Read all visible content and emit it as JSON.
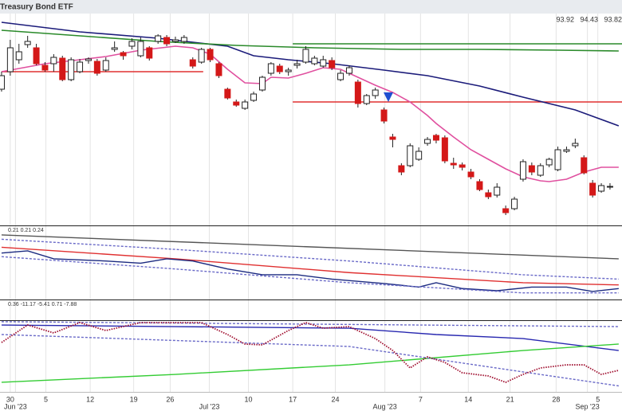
{
  "chart_data": [
    {
      "type": "candlestick",
      "title": "Treasury Bond ETF",
      "header_values": [
        93.92,
        94.43,
        93.82
      ],
      "xlim": [
        -0.18,
        71.38
      ],
      "ylim": [
        92.68,
        104
      ],
      "up_color": "#ffffff",
      "down_color": "#d41818",
      "ohlc": [
        [
          99.52,
          100.4,
          99.4,
          100.2
        ],
        [
          100.4,
          102,
          100.2,
          101.6
        ],
        [
          101,
          101.8,
          100.8,
          101.4
        ],
        [
          101.76,
          102.2,
          101.6,
          101.92
        ],
        [
          101.6,
          101.8,
          100.72,
          100.8
        ],
        [
          100.72,
          100.88,
          100.4,
          100.48
        ],
        [
          100.8,
          101.28,
          100.4,
          101.12
        ],
        [
          101.08,
          101.2,
          99.92,
          100
        ],
        [
          100,
          101.12,
          99.92,
          101
        ],
        [
          100.4,
          101.04,
          100.32,
          100.88
        ],
        [
          100.96,
          101.12,
          100.8,
          101.04
        ],
        [
          100.92,
          101.04,
          100.2,
          100.32
        ],
        [
          100.48,
          101.12,
          100.4,
          100.96
        ],
        [
          101.52,
          101.92,
          101.4,
          101.6
        ],
        [
          101.36,
          101.44,
          101,
          101.2
        ],
        [
          101.68,
          102.08,
          101.52,
          101.92
        ],
        [
          101.2,
          102.12,
          101.12,
          101.92
        ],
        [
          101.6,
          101.68,
          100.96,
          101.08
        ],
        [
          101.92,
          102.28,
          101.8,
          102.2
        ],
        [
          102.12,
          102.24,
          101.68,
          101.8
        ],
        [
          101.92,
          102.16,
          101.84,
          102
        ],
        [
          101.92,
          102.24,
          101.8,
          102.12
        ],
        [
          101,
          101.12,
          100.56,
          100.68
        ],
        [
          100.88,
          101.6,
          100.8,
          101.52
        ],
        [
          101.52,
          101.6,
          100.88,
          101
        ],
        [
          100.8,
          100.88,
          100.08,
          100.2
        ],
        [
          99.52,
          99.6,
          99,
          99.08
        ],
        [
          98.88,
          99,
          98.64,
          98.72
        ],
        [
          98.56,
          99,
          98.48,
          98.88
        ],
        [
          98.96,
          99.4,
          98.88,
          99.28
        ],
        [
          99.48,
          100.2,
          99.4,
          100.12
        ],
        [
          100.32,
          100.88,
          100.2,
          100.8
        ],
        [
          100.68,
          100.8,
          100.28,
          100.4
        ],
        [
          100.4,
          100.6,
          100.2,
          100.48
        ],
        [
          100.72,
          101,
          100.56,
          100.8
        ],
        [
          100.88,
          101.68,
          100.8,
          101.52
        ],
        [
          100.8,
          101.2,
          100.72,
          101.08
        ],
        [
          100.68,
          101.2,
          100.6,
          101
        ],
        [
          100.96,
          101.12,
          100.48,
          100.6
        ],
        [
          100,
          100.48,
          99.92,
          100.32
        ],
        [
          100.32,
          100.72,
          100.2,
          100.6
        ],
        [
          99.88,
          100,
          98.6,
          98.8
        ],
        [
          98.8,
          99.28,
          98.72,
          99.2
        ],
        [
          99.2,
          99.6,
          99.04,
          99.48
        ],
        [
          98.48,
          98.6,
          97.8,
          97.92
        ],
        [
          97.12,
          97.28,
          96.6,
          97
        ],
        [
          95.68,
          95.8,
          95.2,
          95.36
        ],
        [
          95.68,
          96.8,
          95.6,
          96.68
        ],
        [
          96,
          96.6,
          95.92,
          96.4
        ],
        [
          96.8,
          97.12,
          96.68,
          97
        ],
        [
          97.2,
          97.28,
          96.8,
          96.96
        ],
        [
          97.08,
          97.2,
          95.8,
          95.92
        ],
        [
          95.8,
          96.08,
          95.52,
          95.72
        ],
        [
          95.72,
          95.84,
          95.44,
          95.6
        ],
        [
          95.36,
          95.52,
          95,
          95.12
        ],
        [
          94.88,
          95,
          94.4,
          94.48
        ],
        [
          94.32,
          94.48,
          94,
          94.12
        ],
        [
          94.2,
          94.8,
          94.08,
          94.6
        ],
        [
          93.52,
          93.68,
          93.2,
          93.32
        ],
        [
          93.52,
          94.12,
          93.44,
          94
        ],
        [
          95,
          96,
          94.88,
          95.88
        ],
        [
          95.68,
          95.84,
          95.2,
          95.36
        ],
        [
          95.2,
          95.8,
          95.12,
          95.68
        ],
        [
          95.72,
          96.08,
          95.6,
          96
        ],
        [
          95.48,
          96.64,
          95.4,
          96.48
        ],
        [
          96.4,
          96.64,
          96.32,
          96.48
        ],
        [
          96.68,
          97.04,
          96.56,
          96.8
        ],
        [
          96.08,
          96.2,
          95.24,
          95.32
        ],
        [
          94.8,
          94.96,
          94.08,
          94.2
        ],
        [
          94.4,
          94.8,
          94.32,
          94.68
        ],
        [
          94.6,
          94.8,
          94.48,
          94.64
        ]
      ],
      "overlays": [
        {
          "color": "#e0509f",
          "x": [
            0,
            3,
            5,
            9,
            12,
            16,
            20,
            22,
            24,
            26,
            28,
            30,
            31,
            33,
            35,
            37,
            39,
            41,
            43,
            45,
            47,
            49,
            50,
            52,
            54,
            56,
            58,
            60,
            62,
            63,
            65,
            67,
            69,
            71
          ],
          "values": [
            100.4,
            100.64,
            100.8,
            101,
            101.16,
            101.48,
            101.68,
            101.6,
            101.28,
            100.52,
            99.84,
            99.8,
            100.12,
            100.08,
            100.32,
            100.6,
            100.52,
            100.12,
            99.72,
            99.36,
            98.88,
            98.2,
            97.8,
            97.12,
            96.48,
            96,
            95.52,
            95.12,
            94.92,
            94.88,
            95,
            95.36,
            95.6,
            95.6
          ]
        },
        {
          "color": "#1b1b7a",
          "x": [
            0,
            9,
            18,
            26,
            29,
            33,
            38,
            44,
            49,
            55,
            60,
            66,
            71
          ],
          "values": [
            102.88,
            102.4,
            102.08,
            101.68,
            101.2,
            101,
            100.8,
            100.48,
            100.2,
            99.68,
            99.12,
            98.48,
            97.68
          ]
        },
        {
          "color": "#2a8a2a",
          "x": [
            0,
            9,
            18,
            27,
            36,
            46,
            55,
            64,
            71
          ],
          "values": [
            102.48,
            102.2,
            101.92,
            101.72,
            101.6,
            101.52,
            101.52,
            101.48,
            101.44
          ]
        }
      ],
      "levels": [
        {
          "value": 100.4,
          "from": 0,
          "to": 23.2,
          "color": "#e03030"
        },
        {
          "value": 98.88,
          "from": 33.5,
          "to": 71.38,
          "color": "#e03030"
        },
        {
          "value": 101.8,
          "from": 33.5,
          "to": 71.38,
          "color": "#2a8a2a"
        }
      ]
    },
    {
      "type": "line",
      "label": "0.21 0.21 0.24",
      "xlim": [
        -0.18,
        71.38
      ],
      "ylim": [
        0,
        1
      ],
      "series": [
        {
          "color": "#555555",
          "x": [
            0,
            71
          ],
          "values": [
            0.88,
            0.55
          ]
        },
        {
          "color": "#e03030",
          "x": [
            0,
            20,
            40,
            60,
            71
          ],
          "values": [
            0.71,
            0.55,
            0.36,
            0.22,
            0.19
          ]
        },
        {
          "color": "#1b2a80",
          "x": [
            0,
            3,
            6,
            12,
            16,
            19,
            22,
            26,
            30,
            34,
            38,
            44,
            48,
            50,
            53,
            57,
            61,
            65,
            68,
            71
          ],
          "values": [
            0.63,
            0.66,
            0.55,
            0.52,
            0.49,
            0.55,
            0.52,
            0.41,
            0.33,
            0.33,
            0.27,
            0.21,
            0.16,
            0.22,
            0.14,
            0.11,
            0.16,
            0.16,
            0.1,
            0.14
          ]
        },
        {
          "color": "#6a6ac8",
          "dashed": true,
          "x": [
            0,
            20,
            40,
            60,
            71
          ],
          "values": [
            0.82,
            0.68,
            0.52,
            0.33,
            0.27
          ]
        },
        {
          "color": "#6a6ac8",
          "dashed": true,
          "x": [
            0,
            20,
            40,
            60,
            71
          ],
          "values": [
            0.58,
            0.41,
            0.22,
            0.08,
            0.08
          ]
        }
      ]
    },
    {
      "type": "line",
      "label": "0.36 -11.17 -5.41 0.71 -7.88",
      "xlim": [
        -0.18,
        71.38
      ],
      "ylim": [
        19.05,
        90.48
      ],
      "series": [
        {
          "color": "#2828b0",
          "x": [
            0,
            20,
            40,
            50,
            60,
            71
          ],
          "values": [
            85.7,
            84.1,
            82.5,
            76.2,
            72.2,
            60.3
          ]
        },
        {
          "color": "#33cc33",
          "x": [
            0,
            20,
            40,
            60,
            71
          ],
          "values": [
            28.6,
            36.5,
            46,
            60.3,
            66.7
          ]
        },
        {
          "color": "#6a6ac8",
          "dashed": true,
          "x": [
            0,
            71
          ],
          "values": [
            89,
            84.1
          ]
        },
        {
          "color": "#6a6ac8",
          "dashed": true,
          "x": [
            0,
            40,
            71
          ],
          "values": [
            76.2,
            64.3,
            25
          ]
        },
        {
          "color": "#a01030",
          "dotted": true,
          "x": [
            0,
            3,
            6,
            9,
            12,
            16,
            19,
            23,
            26,
            28,
            30,
            33,
            35,
            37,
            40,
            43,
            45,
            47,
            49,
            51,
            53,
            56,
            58,
            60,
            62,
            65,
            67,
            69,
            71
          ],
          "values": [
            68.3,
            85.7,
            77.8,
            88.1,
            80.2,
            88.1,
            88.1,
            88.1,
            76.2,
            66.7,
            65.9,
            80.2,
            88.1,
            82.5,
            84.1,
            72.2,
            60.3,
            42.9,
            54,
            48.4,
            38.1,
            34.9,
            28.6,
            36.5,
            42.9,
            46,
            46,
            36.5,
            40.5
          ]
        }
      ],
      "xticks": [
        {
          "value": 1,
          "label": "30"
        },
        {
          "value": 5.1,
          "label": "5"
        },
        {
          "value": 10.2,
          "label": "12"
        },
        {
          "value": 15.2,
          "label": "19"
        },
        {
          "value": 19.4,
          "label": "26"
        },
        {
          "value": 28.4,
          "label": "10"
        },
        {
          "value": 33.5,
          "label": "17"
        },
        {
          "value": 38.4,
          "label": "24"
        },
        {
          "value": 48.2,
          "label": "7"
        },
        {
          "value": 53.7,
          "label": "14"
        },
        {
          "value": 58.5,
          "label": "21"
        },
        {
          "value": 63.8,
          "label": "28"
        },
        {
          "value": 68.6,
          "label": "5"
        }
      ],
      "month_labels": [
        {
          "value": 1.6,
          "label": "Jun '23"
        },
        {
          "value": 23.9,
          "label": "Jul '23"
        },
        {
          "value": 44.1,
          "label": "Aug '23"
        },
        {
          "value": 67.4,
          "label": "Sep '23"
        }
      ]
    }
  ]
}
